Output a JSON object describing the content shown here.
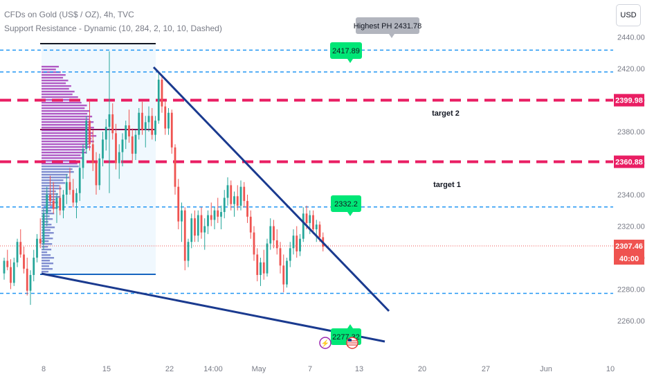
{
  "header": {
    "symbol": "CFDs on Gold (US$ / OZ), 4h, TVC",
    "indicator": "Support Resistance - Dynamic (10, 284, 2, 10, 10, Dashed)"
  },
  "currency_button": "USD",
  "colors": {
    "up": "#26a69a",
    "down": "#ef5350",
    "blue_dash": "#2196f3",
    "red_dash": "#e91e63",
    "trend": "#1a3a8f",
    "label_green": "#00e676",
    "label_gray": "#b2b5be",
    "profile": "#9c27b0",
    "profile_box": "#e3f2fd"
  },
  "annotations": {
    "highest_ph": "Highest PH 2431.78",
    "level_a": "2417.89",
    "level_b": "2332.2",
    "level_c": "2277.32",
    "target2": "target 2",
    "target1": "target 1"
  },
  "axis": {
    "price_ticks": [
      "2440.00",
      "2420.00",
      "2400.00",
      "2380.00",
      "2360.00",
      "2340.00",
      "2320.00",
      "2300.00",
      "2280.00",
      "2260.00"
    ],
    "tag_t2": "2399.98",
    "tag_t1": "2360.88",
    "tag_last": "2307.46",
    "tag_countdown": "40:00",
    "time_ticks": [
      "8",
      "15",
      "22",
      "14:00",
      "May",
      "7",
      "13",
      "20",
      "27",
      "Jun",
      "10"
    ]
  },
  "chart_data": {
    "type": "candlestick",
    "symbol": "CFDs on Gold (US$ / OZ)",
    "timeframe": "4h",
    "ylim": [
      2256,
      2446
    ],
    "last_price": 2307.46,
    "levels": {
      "dashed_blue": [
        2431.78,
        2417.89,
        2332.2,
        2277.32
      ],
      "dashed_red": [
        2399.98,
        2360.88
      ]
    },
    "targets": [
      {
        "label": "target 2",
        "price": 2399.98
      },
      {
        "label": "target 1",
        "price": 2360.88
      }
    ],
    "candles": [
      [
        2290,
        2300,
        2286,
        2298
      ],
      [
        2298,
        2305,
        2292,
        2294
      ],
      [
        2294,
        2299,
        2280,
        2284
      ],
      [
        2284,
        2300,
        2282,
        2297
      ],
      [
        2297,
        2312,
        2294,
        2310
      ],
      [
        2310,
        2318,
        2300,
        2302
      ],
      [
        2302,
        2307,
        2290,
        2293
      ],
      [
        2293,
        2300,
        2276,
        2279
      ],
      [
        2279,
        2292,
        2270,
        2289
      ],
      [
        2289,
        2305,
        2285,
        2300
      ],
      [
        2300,
        2315,
        2297,
        2312
      ],
      [
        2312,
        2325,
        2306,
        2309
      ],
      [
        2309,
        2331,
        2305,
        2328
      ],
      [
        2328,
        2345,
        2320,
        2340
      ],
      [
        2340,
        2352,
        2333,
        2336
      ],
      [
        2336,
        2348,
        2328,
        2331
      ],
      [
        2331,
        2341,
        2322,
        2338
      ],
      [
        2338,
        2346,
        2327,
        2330
      ],
      [
        2330,
        2343,
        2325,
        2340
      ],
      [
        2340,
        2353,
        2334,
        2348
      ],
      [
        2348,
        2357,
        2340,
        2343
      ],
      [
        2343,
        2350,
        2332,
        2335
      ],
      [
        2335,
        2344,
        2325,
        2341
      ],
      [
        2341,
        2360,
        2336,
        2357
      ],
      [
        2357,
        2372,
        2350,
        2369
      ],
      [
        2369,
        2390,
        2366,
        2387
      ],
      [
        2387,
        2400,
        2368,
        2372
      ],
      [
        2372,
        2381,
        2355,
        2360
      ],
      [
        2360,
        2367,
        2340,
        2346
      ],
      [
        2346,
        2366,
        2343,
        2363
      ],
      [
        2363,
        2380,
        2358,
        2375
      ],
      [
        2375,
        2388,
        2368,
        2383
      ],
      [
        2383,
        2431,
        2341,
        2391
      ],
      [
        2391,
        2398,
        2375,
        2379
      ],
      [
        2379,
        2385,
        2356,
        2360
      ],
      [
        2360,
        2372,
        2350,
        2367
      ],
      [
        2367,
        2379,
        2358,
        2375
      ],
      [
        2375,
        2387,
        2369,
        2384
      ],
      [
        2384,
        2394,
        2373,
        2377
      ],
      [
        2377,
        2382,
        2360,
        2366
      ],
      [
        2366,
        2381,
        2362,
        2378
      ],
      [
        2378,
        2395,
        2375,
        2392
      ],
      [
        2392,
        2399,
        2378,
        2381
      ],
      [
        2381,
        2390,
        2370,
        2386
      ],
      [
        2386,
        2396,
        2380,
        2390
      ],
      [
        2390,
        2395,
        2375,
        2378
      ],
      [
        2378,
        2390,
        2374,
        2387
      ],
      [
        2387,
        2417,
        2385,
        2413
      ],
      [
        2413,
        2415,
        2392,
        2396
      ],
      [
        2396,
        2400,
        2378,
        2382
      ],
      [
        2382,
        2395,
        2378,
        2392
      ],
      [
        2392,
        2394,
        2366,
        2370
      ],
      [
        2370,
        2372,
        2340,
        2345
      ],
      [
        2345,
        2350,
        2318,
        2323
      ],
      [
        2323,
        2335,
        2310,
        2330
      ],
      [
        2330,
        2332,
        2292,
        2298
      ],
      [
        2298,
        2312,
        2294,
        2310
      ],
      [
        2310,
        2328,
        2306,
        2325
      ],
      [
        2325,
        2330,
        2310,
        2314
      ],
      [
        2314,
        2330,
        2310,
        2327
      ],
      [
        2327,
        2332,
        2312,
        2316
      ],
      [
        2316,
        2325,
        2305,
        2320
      ],
      [
        2320,
        2330,
        2315,
        2327
      ],
      [
        2327,
        2335,
        2320,
        2324
      ],
      [
        2324,
        2332,
        2318,
        2330
      ],
      [
        2330,
        2338,
        2322,
        2326
      ],
      [
        2326,
        2333,
        2318,
        2329
      ],
      [
        2329,
        2343,
        2325,
        2338
      ],
      [
        2338,
        2351,
        2333,
        2346
      ],
      [
        2346,
        2349,
        2330,
        2334
      ],
      [
        2334,
        2342,
        2326,
        2339
      ],
      [
        2339,
        2346,
        2330,
        2333
      ],
      [
        2333,
        2349,
        2330,
        2345
      ],
      [
        2345,
        2348,
        2332,
        2336
      ],
      [
        2336,
        2340,
        2322,
        2326
      ],
      [
        2326,
        2330,
        2312,
        2316
      ],
      [
        2316,
        2320,
        2298,
        2302
      ],
      [
        2302,
        2306,
        2285,
        2289
      ],
      [
        2289,
        2300,
        2282,
        2297
      ],
      [
        2297,
        2305,
        2286,
        2290
      ],
      [
        2290,
        2312,
        2288,
        2309
      ],
      [
        2309,
        2325,
        2305,
        2320
      ],
      [
        2320,
        2324,
        2306,
        2311
      ],
      [
        2311,
        2318,
        2302,
        2306
      ],
      [
        2306,
        2310,
        2290,
        2295
      ],
      [
        2295,
        2302,
        2278,
        2283
      ],
      [
        2283,
        2300,
        2281,
        2298
      ],
      [
        2298,
        2310,
        2294,
        2306
      ],
      [
        2306,
        2318,
        2302,
        2314
      ],
      [
        2314,
        2320,
        2300,
        2304
      ],
      [
        2304,
        2315,
        2301,
        2312
      ],
      [
        2312,
        2332,
        2310,
        2328
      ],
      [
        2328,
        2333,
        2318,
        2322
      ],
      [
        2322,
        2330,
        2315,
        2327
      ],
      [
        2327,
        2330,
        2315,
        2318
      ],
      [
        2318,
        2324,
        2310,
        2321
      ],
      [
        2321,
        2323,
        2310,
        2313
      ],
      [
        2313,
        2316,
        2304,
        2307
      ]
    ]
  }
}
